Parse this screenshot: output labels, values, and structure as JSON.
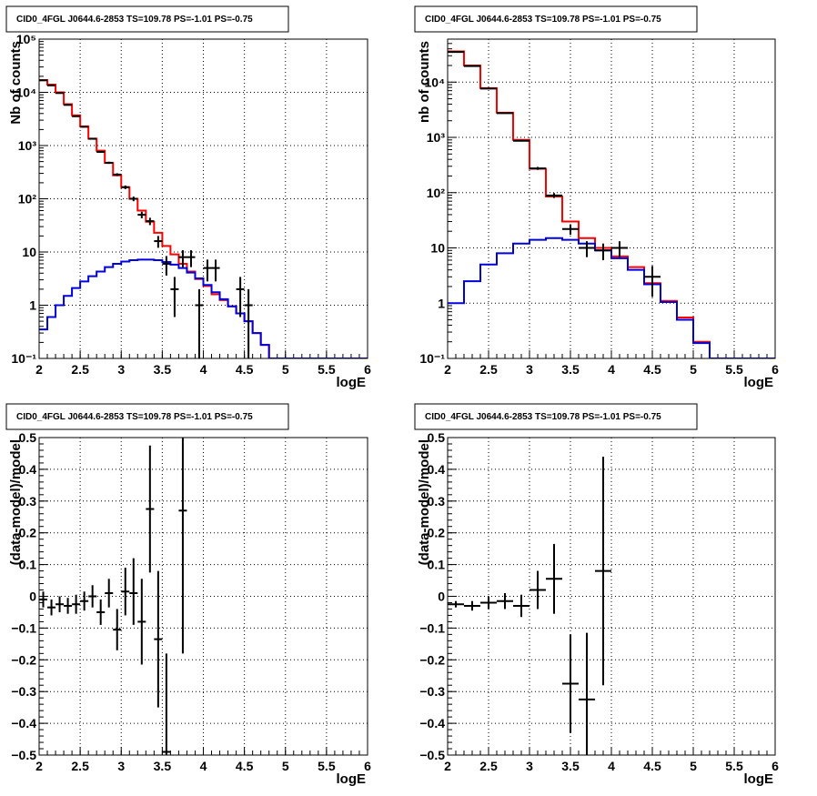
{
  "colors": {
    "background": "#ffffff",
    "frame": "#000000",
    "grid": "#000000",
    "data": "#000000",
    "total_model": "#ff0000",
    "source_model": "#0000dd"
  },
  "chart_data": [
    {
      "type": "line",
      "panel": "top-left",
      "title": "CID0_4FGL J0644.6-2853 TS=109.78 PS=-1.01 PS=-0.75",
      "xlabel": "logE",
      "ylabel": "Nb of counts",
      "xlim": [
        2,
        6
      ],
      "ylim": [
        0.1,
        100000
      ],
      "log_y": true,
      "grid": true,
      "x_ticks": [
        "2",
        "2.5",
        "3",
        "3.5",
        "4",
        "4.5",
        "5",
        "5.5",
        "6"
      ],
      "y_ticks": [
        "10⁻¹",
        "1",
        "10",
        "10²",
        "10³",
        "10⁴",
        "10⁵"
      ],
      "bin_edges": [
        2.0,
        2.1,
        2.2,
        2.3,
        2.4,
        2.5,
        2.6,
        2.7,
        2.8,
        2.9,
        3.0,
        3.1,
        3.2,
        3.3,
        3.4,
        3.5,
        3.6,
        3.7,
        3.8,
        3.9,
        4.0,
        4.1,
        4.2,
        4.3,
        4.4,
        4.5,
        4.6,
        4.7,
        4.8,
        4.9,
        5.0,
        5.1,
        5.2,
        5.3,
        5.4,
        5.5,
        5.6,
        5.7,
        5.8,
        5.9,
        6.0
      ],
      "series": [
        {
          "kind": "histogram",
          "color": "#ff0000",
          "values": [
            17000,
            14000,
            10000,
            6000,
            3700,
            2300,
            1350,
            800,
            470,
            275,
            165,
            100,
            60,
            37,
            23,
            13,
            9,
            6,
            4.3,
            3.1,
            2.3,
            1.6,
            1.25,
            0.95,
            0.7,
            0.5,
            0.3,
            0.18,
            0.1,
            0.1,
            0.1,
            0.1,
            0.1,
            0.1,
            0.1,
            0.1,
            0.1,
            0.1,
            0.1,
            0.1
          ]
        },
        {
          "kind": "histogram",
          "color": "#0000dd",
          "values": [
            0.35,
            0.6,
            1.0,
            1.5,
            2.1,
            2.8,
            3.5,
            4.3,
            5.2,
            6.0,
            6.6,
            7.0,
            7.2,
            7.2,
            7.0,
            6.5,
            5.8,
            5.0,
            4.1,
            3.2,
            2.4,
            1.75,
            1.3,
            0.95,
            0.7,
            0.5,
            0.3,
            0.18,
            0.1,
            0.1,
            0.1,
            0.1,
            0.1,
            0.1,
            0.1,
            0.1,
            0.1,
            0.1,
            0.1,
            0.1
          ]
        }
      ],
      "points": [
        {
          "x": 2.05,
          "y": 16800,
          "lo": 16670,
          "hi": 16930
        },
        {
          "x": 2.15,
          "y": 13500,
          "lo": 13380,
          "hi": 13620
        },
        {
          "x": 2.25,
          "y": 9700,
          "lo": 9600,
          "hi": 9800
        },
        {
          "x": 2.35,
          "y": 5800,
          "lo": 5720,
          "hi": 5880
        },
        {
          "x": 2.45,
          "y": 3550,
          "lo": 3490,
          "hi": 3610
        },
        {
          "x": 2.55,
          "y": 2250,
          "lo": 2200,
          "hi": 2300
        },
        {
          "x": 2.65,
          "y": 1340,
          "lo": 1303,
          "hi": 1377
        },
        {
          "x": 2.75,
          "y": 760,
          "lo": 732,
          "hi": 788
        },
        {
          "x": 2.85,
          "y": 475,
          "lo": 453,
          "hi": 497
        },
        {
          "x": 2.95,
          "y": 285,
          "lo": 268,
          "hi": 302
        },
        {
          "x": 3.05,
          "y": 165,
          "lo": 152,
          "hi": 178
        },
        {
          "x": 3.15,
          "y": 100,
          "lo": 90,
          "hi": 110
        },
        {
          "x": 3.25,
          "y": 50,
          "lo": 43,
          "hi": 57
        },
        {
          "x": 3.35,
          "y": 38,
          "lo": 32,
          "hi": 44
        },
        {
          "x": 3.45,
          "y": 16,
          "lo": 12,
          "hi": 20
        },
        {
          "x": 3.55,
          "y": 6,
          "lo": 3.6,
          "hi": 8.4
        },
        {
          "x": 3.65,
          "y": 2,
          "lo": 0.6,
          "hi": 3.4
        },
        {
          "x": 3.75,
          "y": 8,
          "lo": 5.2,
          "hi": 10.8
        },
        {
          "x": 3.85,
          "y": 8,
          "lo": 5.2,
          "hi": 10.8
        },
        {
          "x": 3.95,
          "y": 1,
          "lo": 0.1,
          "hi": 2
        },
        {
          "x": 4.05,
          "y": 5,
          "lo": 2.8,
          "hi": 7.2
        },
        {
          "x": 4.15,
          "y": 5,
          "lo": 2.8,
          "hi": 7.2
        },
        {
          "x": 4.45,
          "y": 2,
          "lo": 0.6,
          "hi": 3.4
        },
        {
          "x": 4.55,
          "y": 1,
          "lo": 0.1,
          "hi": 2
        }
      ]
    },
    {
      "type": "line",
      "panel": "top-right",
      "title": "CID0_4FGL J0644.6-2853 TS=109.78 PS=-1.01 PS=-0.75",
      "xlabel": "logE",
      "ylabel": "nb of counts",
      "xlim": [
        2,
        6
      ],
      "ylim": [
        0.1,
        60000
      ],
      "log_y": true,
      "grid": true,
      "x_ticks": [
        "2",
        "2.5",
        "3",
        "3.5",
        "4",
        "4.5",
        "5",
        "5.5",
        "6"
      ],
      "y_ticks": [
        "10⁻¹",
        "1",
        "10",
        "10²",
        "10³",
        "10⁴"
      ],
      "bin_edges": [
        2.0,
        2.2,
        2.4,
        2.6,
        2.8,
        3.0,
        3.2,
        3.4,
        3.6,
        3.8,
        4.0,
        4.2,
        4.4,
        4.6,
        4.8,
        5.0,
        5.2,
        5.4,
        5.6,
        5.8,
        6.0
      ],
      "series": [
        {
          "kind": "histogram",
          "color": "#ff0000",
          "values": [
            36000,
            20000,
            7800,
            2800,
            900,
            270,
            85,
            30,
            15,
            10,
            7,
            4.5,
            2.3,
            1.1,
            0.55,
            0.2,
            0.1,
            0.1,
            0.1,
            0.1
          ]
        },
        {
          "kind": "histogram",
          "color": "#0000dd",
          "values": [
            1.0,
            2.5,
            5.0,
            8.0,
            12,
            14,
            15,
            14,
            12,
            9,
            6.5,
            4.0,
            2.2,
            1.05,
            0.5,
            0.19,
            0.1,
            0.1,
            0.1,
            0.1
          ]
        }
      ],
      "points": [
        {
          "x": 2.1,
          "y": 35200,
          "lo": 35010,
          "hi": 35390
        },
        {
          "x": 2.3,
          "y": 19500,
          "lo": 19360,
          "hi": 19640
        },
        {
          "x": 2.5,
          "y": 7650,
          "lo": 7560,
          "hi": 7740
        },
        {
          "x": 2.7,
          "y": 2750,
          "lo": 2700,
          "hi": 2800
        },
        {
          "x": 2.9,
          "y": 870,
          "lo": 840,
          "hi": 900
        },
        {
          "x": 3.1,
          "y": 275,
          "lo": 258,
          "hi": 292
        },
        {
          "x": 3.3,
          "y": 89,
          "lo": 80,
          "hi": 98
        },
        {
          "x": 3.5,
          "y": 22,
          "lo": 17.3,
          "hi": 26.7
        },
        {
          "x": 3.7,
          "y": 10,
          "lo": 6.8,
          "hi": 13.2
        },
        {
          "x": 3.9,
          "y": 9,
          "lo": 6,
          "hi": 12
        },
        {
          "x": 4.1,
          "y": 10,
          "lo": 6.8,
          "hi": 13.2
        },
        {
          "x": 4.5,
          "y": 3,
          "lo": 1.3,
          "hi": 4.7
        }
      ]
    },
    {
      "type": "scatter",
      "panel": "bottom-left",
      "title": "CID0_4FGL J0644.6-2853 TS=109.78 PS=-1.01 PS=-0.75",
      "xlabel": "logE",
      "ylabel": "(data-model)/model",
      "xlim": [
        2,
        6
      ],
      "ylim": [
        -0.5,
        0.5
      ],
      "log_y": false,
      "grid": true,
      "x_ticks": [
        "2",
        "2.5",
        "3",
        "3.5",
        "4",
        "4.5",
        "5",
        "5.5",
        "6"
      ],
      "y_ticks": [
        "−0.5",
        "−0.4",
        "−0.3",
        "−0.2",
        "−0.1",
        "0",
        "0.1",
        "0.2",
        "0.3",
        "0.4",
        "0.5"
      ],
      "x_halfwidth": 0.05,
      "points": [
        {
          "x": 2.05,
          "y": -0.01,
          "lo": -0.035,
          "hi": 0.015
        },
        {
          "x": 2.15,
          "y": -0.035,
          "lo": -0.06,
          "hi": -0.01
        },
        {
          "x": 2.25,
          "y": -0.025,
          "lo": -0.05,
          "hi": 0.0
        },
        {
          "x": 2.35,
          "y": -0.03,
          "lo": -0.055,
          "hi": -0.005
        },
        {
          "x": 2.45,
          "y": -0.025,
          "lo": -0.055,
          "hi": 0.005
        },
        {
          "x": 2.55,
          "y": -0.015,
          "lo": -0.045,
          "hi": 0.015
        },
        {
          "x": 2.65,
          "y": 0.0,
          "lo": -0.035,
          "hi": 0.035
        },
        {
          "x": 2.75,
          "y": -0.05,
          "lo": -0.09,
          "hi": -0.01
        },
        {
          "x": 2.85,
          "y": 0.01,
          "lo": -0.035,
          "hi": 0.055
        },
        {
          "x": 2.95,
          "y": -0.105,
          "lo": -0.17,
          "hi": -0.04
        },
        {
          "x": 3.05,
          "y": 0.015,
          "lo": -0.06,
          "hi": 0.09
        },
        {
          "x": 3.15,
          "y": 0.01,
          "lo": -0.09,
          "hi": 0.12
        },
        {
          "x": 3.25,
          "y": -0.08,
          "lo": -0.215,
          "hi": 0.055
        },
        {
          "x": 3.35,
          "y": 0.275,
          "lo": 0.075,
          "hi": 0.475
        },
        {
          "x": 3.45,
          "y": -0.135,
          "lo": -0.35,
          "hi": 0.08
        },
        {
          "x": 3.55,
          "y": -0.49,
          "lo": -0.8,
          "hi": -0.18
        },
        {
          "x": 3.75,
          "y": 0.27,
          "lo": -0.18,
          "hi": 0.72
        }
      ]
    },
    {
      "type": "scatter",
      "panel": "bottom-right",
      "title": "CID0_4FGL J0644.6-2853 TS=109.78 PS=-1.01 PS=-0.75",
      "xlabel": "logE",
      "ylabel": "(data-model)/model",
      "xlim": [
        2,
        6
      ],
      "ylim": [
        -0.5,
        0.5
      ],
      "log_y": false,
      "grid": true,
      "x_ticks": [
        "2",
        "2.5",
        "3",
        "3.5",
        "4",
        "4.5",
        "5",
        "5.5",
        "6"
      ],
      "y_ticks": [
        "−0.5",
        "−0.4",
        "−0.3",
        "−0.2",
        "−0.1",
        "0",
        "0.1",
        "0.2",
        "0.3",
        "0.4",
        "0.5"
      ],
      "x_halfwidth": 0.1,
      "points": [
        {
          "x": 2.1,
          "y": -0.025,
          "lo": -0.035,
          "hi": -0.015
        },
        {
          "x": 2.3,
          "y": -0.03,
          "lo": -0.045,
          "hi": -0.015
        },
        {
          "x": 2.5,
          "y": -0.02,
          "lo": -0.04,
          "hi": 0.0
        },
        {
          "x": 2.7,
          "y": -0.015,
          "lo": -0.04,
          "hi": 0.01
        },
        {
          "x": 2.9,
          "y": -0.03,
          "lo": -0.065,
          "hi": 0.005
        },
        {
          "x": 3.1,
          "y": 0.02,
          "lo": -0.04,
          "hi": 0.08
        },
        {
          "x": 3.3,
          "y": 0.055,
          "lo": -0.055,
          "hi": 0.165
        },
        {
          "x": 3.5,
          "y": -0.275,
          "lo": -0.43,
          "hi": -0.12
        },
        {
          "x": 3.7,
          "y": -0.325,
          "lo": -0.53,
          "hi": -0.115
        },
        {
          "x": 3.9,
          "y": 0.08,
          "lo": -0.28,
          "hi": 0.44
        }
      ]
    }
  ]
}
